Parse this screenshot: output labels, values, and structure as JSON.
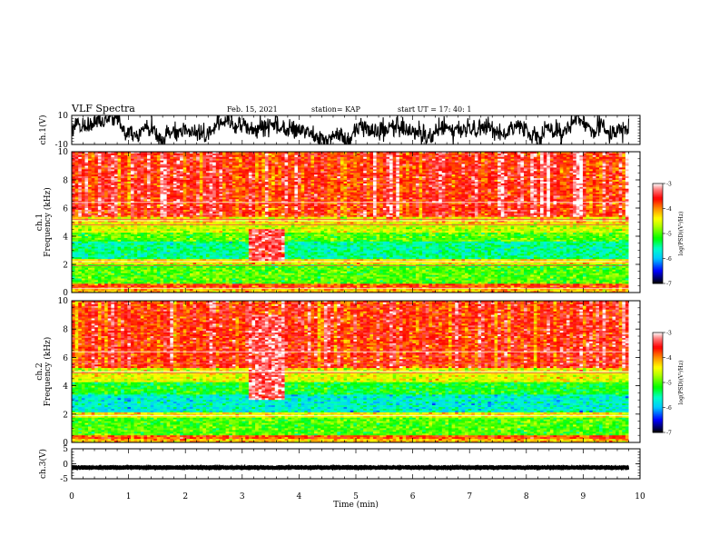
{
  "header": {
    "title": "VLF Spectra",
    "date": "Feb. 15, 2021",
    "station": "station= KAP",
    "start": "start  UT =   17: 40: 1"
  },
  "colorscale": {
    "label": "log(PSD)(V²/Hz)",
    "ticks": [
      "-3",
      "-4",
      "-5",
      "-6",
      "-7"
    ],
    "colors": [
      "#ffffff",
      "#ff0000",
      "#ffff00",
      "#00ff00",
      "#00ffff",
      "#0000ff",
      "#000000"
    ]
  },
  "chart_data": [
    {
      "type": "line",
      "panel": "ch1-waveform",
      "ylabel": "ch.1(V)",
      "yticks": [
        "10",
        "-10"
      ],
      "ylim": [
        -10,
        10
      ],
      "xlim": [
        0,
        10
      ],
      "data_end_min": 9.8,
      "approx_range": [
        -8,
        8
      ]
    },
    {
      "type": "heatmap",
      "panel": "ch1-spectrogram",
      "ylabel": "ch.1\nFrequency  (kHz)",
      "yticks": [
        "0",
        "2",
        "4",
        "6",
        "8",
        "10"
      ],
      "ylim": [
        0,
        10
      ],
      "xlim": [
        0,
        10
      ],
      "data_end_min": 9.8,
      "value_label": "log(PSD)(V²/Hz)",
      "value_range": [
        -7,
        -3
      ],
      "bands": [
        {
          "f": [
            0,
            0.3
          ],
          "level": -4.2
        },
        {
          "f": [
            0.3,
            0.6
          ],
          "level": -3.8
        },
        {
          "f": [
            0.6,
            2.0
          ],
          "level": -5.0
        },
        {
          "f": [
            2.0,
            2.4
          ],
          "level": -4.3
        },
        {
          "f": [
            2.4,
            3.6
          ],
          "level": -5.5
        },
        {
          "f": [
            3.6,
            4.2
          ],
          "level": -5.0
        },
        {
          "f": [
            4.2,
            4.9
          ],
          "level": -4.6
        },
        {
          "f": [
            4.9,
            5.4
          ],
          "level": -4.3
        },
        {
          "f": [
            5.4,
            10.0
          ],
          "level": -3.6
        }
      ],
      "lines_khz": [
        0.3,
        1.9,
        2.2,
        4.8,
        5.1,
        5.2,
        6.4
      ],
      "event": {
        "t": [
          3.1,
          3.75
        ],
        "f": [
          2.2,
          4.5
        ],
        "level": -3.4
      }
    },
    {
      "type": "heatmap",
      "panel": "ch2-spectrogram",
      "ylabel": "ch.2\nFrequency  (kHz)",
      "yticks": [
        "0",
        "2",
        "4",
        "6",
        "8",
        "10"
      ],
      "ylim": [
        0,
        10
      ],
      "xlim": [
        0,
        10
      ],
      "data_end_min": 9.8,
      "value_label": "log(PSD)(V²/Hz)",
      "value_range": [
        -7,
        -3
      ],
      "bands": [
        {
          "f": [
            0,
            0.3
          ],
          "level": -4.2
        },
        {
          "f": [
            0.3,
            0.5
          ],
          "level": -3.8
        },
        {
          "f": [
            0.5,
            1.8
          ],
          "level": -5.0
        },
        {
          "f": [
            1.8,
            2.1
          ],
          "level": -4.4
        },
        {
          "f": [
            2.1,
            3.4
          ],
          "level": -5.7
        },
        {
          "f": [
            3.4,
            4.3
          ],
          "level": -5.2
        },
        {
          "f": [
            4.3,
            5.2
          ],
          "level": -4.5
        },
        {
          "f": [
            5.2,
            10.0
          ],
          "level": -3.7
        }
      ],
      "lines_khz": [
        1.9,
        4.9,
        5.0,
        5.6,
        6.4
      ],
      "event": {
        "t": [
          3.1,
          3.75
        ],
        "f": [
          3.0,
          9.0
        ],
        "level": -3.3
      }
    },
    {
      "type": "line",
      "panel": "ch3-waveform",
      "ylabel": "ch.3(V)",
      "yticks": [
        "5",
        "0",
        "-5"
      ],
      "ylim": [
        -5,
        5
      ],
      "xlim": [
        0,
        10
      ],
      "data_end_min": 9.8,
      "approx_range": [
        -2,
        -0.5
      ]
    }
  ],
  "xaxis": {
    "label": "Time  (min)",
    "ticks": [
      "0",
      "1",
      "2",
      "3",
      "4",
      "5",
      "6",
      "7",
      "8",
      "9",
      "10"
    ]
  }
}
